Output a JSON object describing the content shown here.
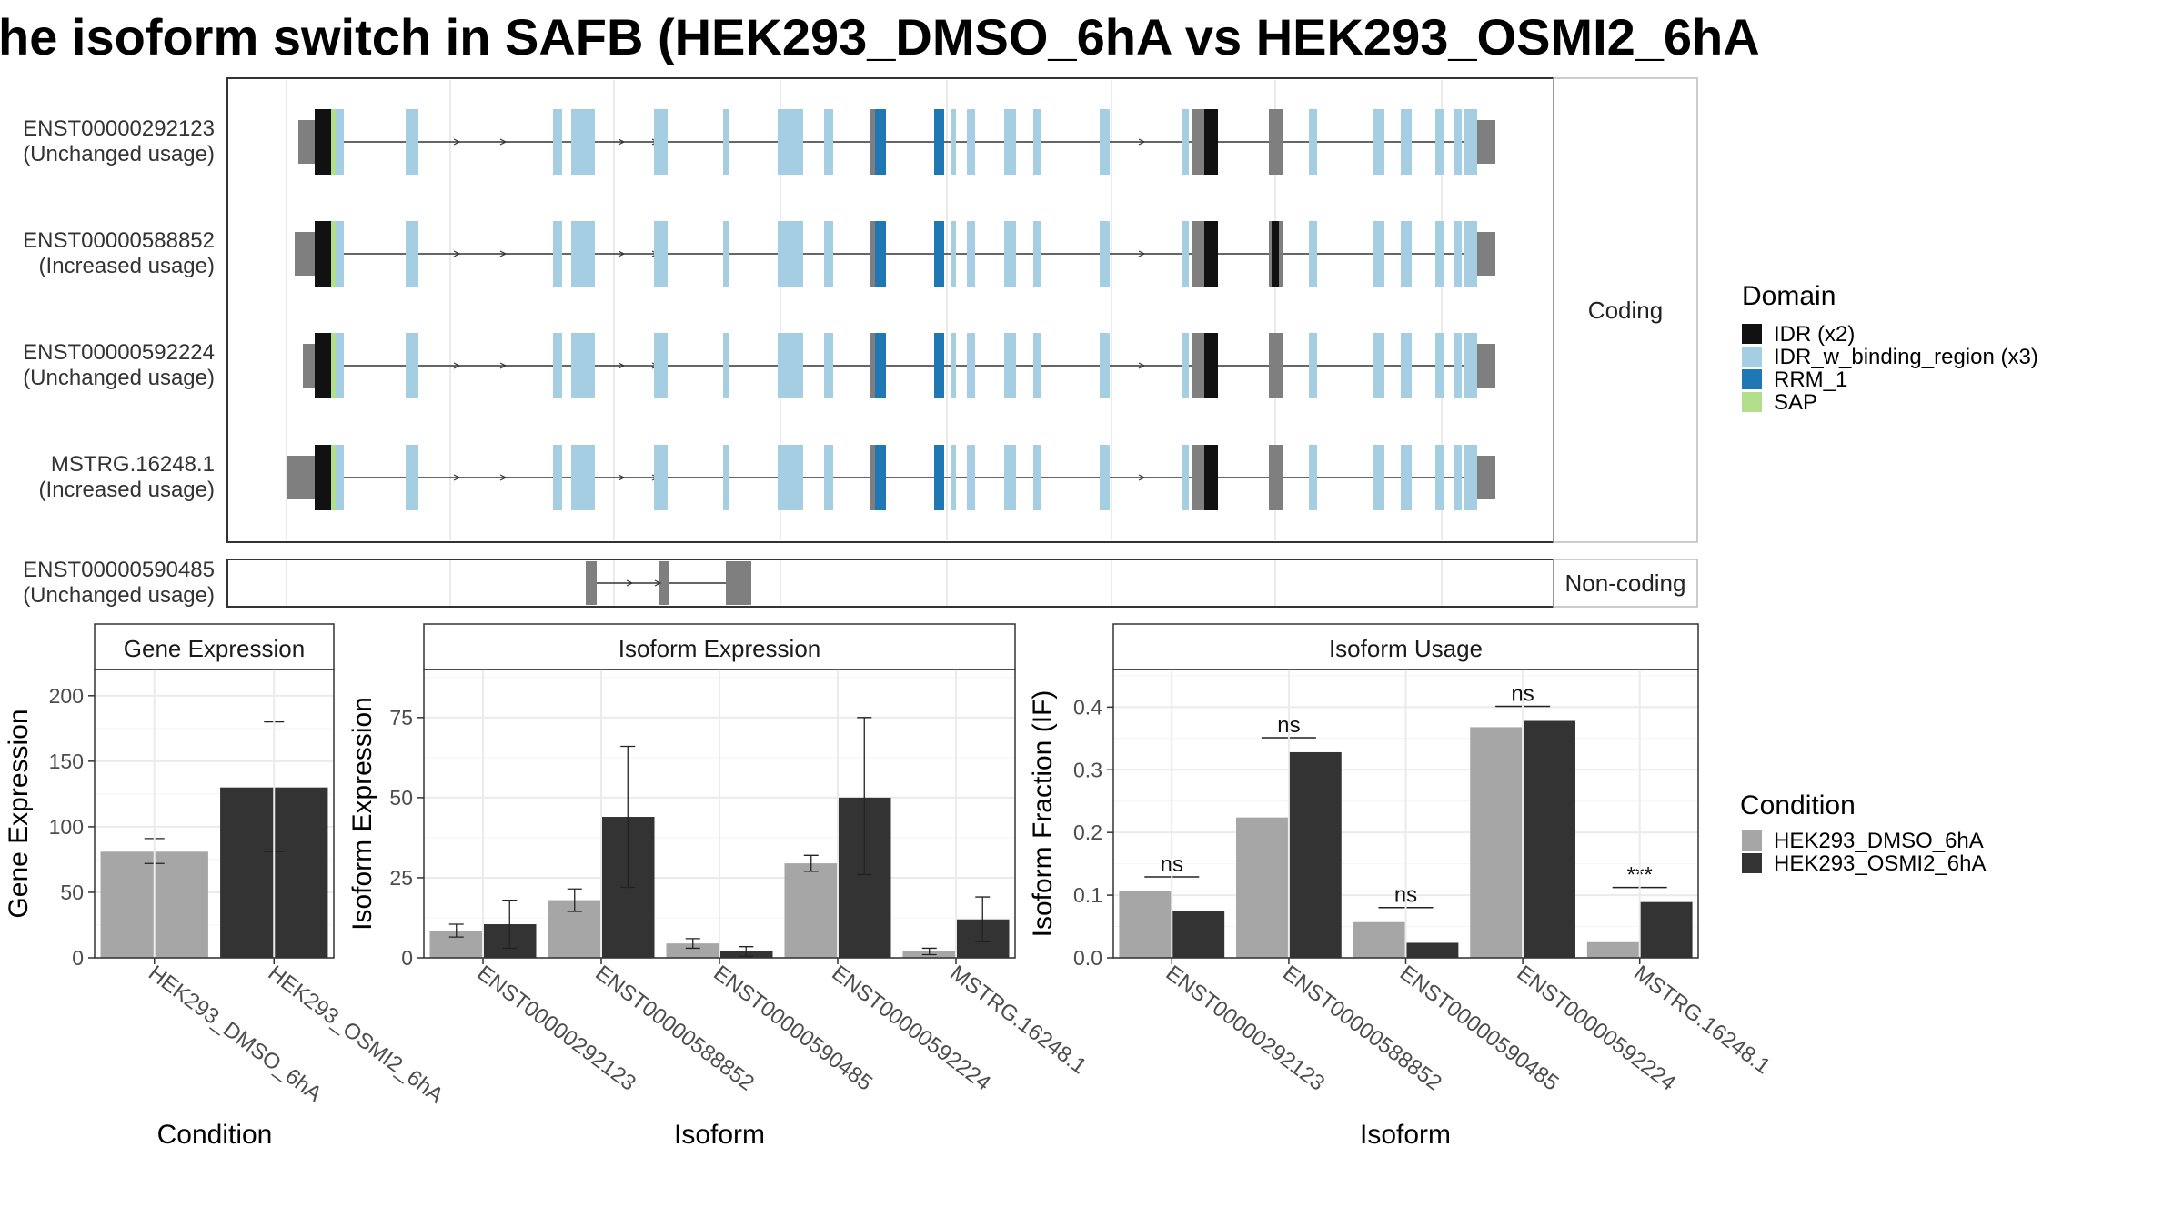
{
  "title": "he isoform switch in SAFB (HEK293_DMSO_6hA vs HEK293_OSMI2_6hA",
  "colors": {
    "idr": "#111111",
    "idr_binding": "#a6cee3",
    "rrm": "#1f78b4",
    "sap": "#b2df8a",
    "utr": "#7f7f7f",
    "dmso": "#a6a6a6",
    "osmi2": "#333333"
  },
  "structure": {
    "coding_label": "Coding",
    "noncoding_label": "Non-coding",
    "isoforms": [
      {
        "id": "ENST00000292123",
        "usage": "(Unchanged usage)"
      },
      {
        "id": "ENST00000588852",
        "usage": "(Increased usage)"
      },
      {
        "id": "ENST00000592224",
        "usage": "(Unchanged usage)"
      },
      {
        "id": "MSTRG.16248.1",
        "usage": "(Increased usage)"
      }
    ],
    "noncoding": {
      "id": "ENST00000590485",
      "usage": "(Unchanged usage)"
    }
  },
  "legends": {
    "domain": {
      "title": "Domain",
      "items": [
        {
          "label": "IDR (x2)",
          "color": "#111111"
        },
        {
          "label": "IDR_w_binding_region (x3)",
          "color": "#a6cee3"
        },
        {
          "label": "RRM_1",
          "color": "#1f78b4"
        },
        {
          "label": "SAP",
          "color": "#b2df8a"
        }
      ]
    },
    "condition": {
      "title": "Condition",
      "items": [
        {
          "label": "HEK293_DMSO_6hA",
          "color": "#a6a6a6"
        },
        {
          "label": "HEK293_OSMI2_6hA",
          "color": "#333333"
        }
      ]
    }
  },
  "chart_data": [
    {
      "type": "bar",
      "panel_title": "Gene Expression",
      "xlabel": "Condition",
      "ylabel": "Gene Expression",
      "ylim": [
        0,
        220
      ],
      "yticks": [
        0,
        50,
        100,
        150,
        200
      ],
      "categories": [
        "HEK293_DMSO_6hA",
        "HEK293_OSMI2_6hA"
      ],
      "values": [
        81,
        130
      ],
      "errors_low": [
        72,
        81
      ],
      "errors_high": [
        91,
        180
      ]
    },
    {
      "type": "bar",
      "panel_title": "Isoform Expression",
      "xlabel": "Isoform",
      "ylabel": "Isoform Expression",
      "ylim": [
        0,
        90
      ],
      "yticks": [
        0,
        25,
        50,
        75
      ],
      "categories": [
        "ENST00000292123",
        "ENST00000588852",
        "ENST00000590485",
        "ENST00000592224",
        "MSTRG.16248.1"
      ],
      "series": [
        {
          "name": "HEK293_DMSO_6hA",
          "values": [
            8.5,
            18,
            4.5,
            29.5,
            2
          ],
          "low": [
            6.5,
            14.5,
            3,
            27,
            1
          ],
          "high": [
            10.5,
            21.5,
            6,
            32,
            3
          ]
        },
        {
          "name": "HEK293_OSMI2_6hA",
          "values": [
            10.5,
            44,
            2,
            50,
            12
          ],
          "low": [
            3,
            22,
            0.5,
            26,
            5
          ],
          "high": [
            18,
            66,
            3.5,
            75,
            19
          ]
        }
      ]
    },
    {
      "type": "bar",
      "panel_title": "Isoform Usage",
      "xlabel": "Isoform",
      "ylabel": "Isoform Fraction (IF)",
      "ylim": [
        0,
        0.46
      ],
      "yticks": [
        "0.0",
        "0.1",
        "0.2",
        "0.3",
        "0.4"
      ],
      "categories": [
        "ENST00000292123",
        "ENST00000588852",
        "ENST00000590485",
        "ENST00000592224",
        "MSTRG.16248.1"
      ],
      "series": [
        {
          "name": "HEK293_DMSO_6hA",
          "values": [
            0.106,
            0.224,
            0.057,
            0.368,
            0.025
          ]
        },
        {
          "name": "HEK293_OSMI2_6hA",
          "values": [
            0.075,
            0.328,
            0.024,
            0.378,
            0.089
          ]
        }
      ],
      "significance": [
        "ns",
        "ns",
        "ns",
        "ns",
        "***"
      ]
    }
  ]
}
